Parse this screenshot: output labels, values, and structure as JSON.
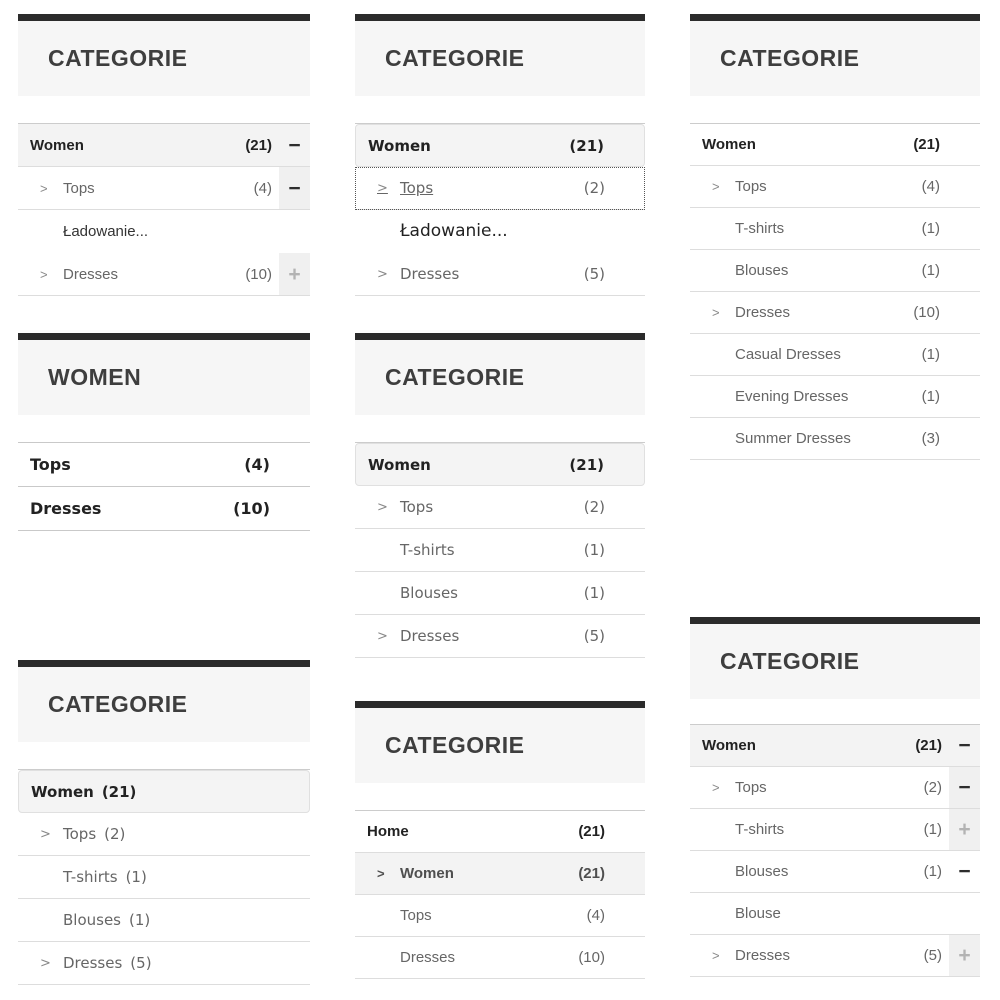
{
  "icons": {
    "chevron": ">",
    "collapse": "−",
    "expand": "+"
  },
  "columns": [
    {
      "widgets": [
        {
          "title": "CATEGORIE",
          "items": [
            {
              "label": "Women",
              "count": "(21)"
            },
            {
              "label": "Tops",
              "count": "(4)"
            },
            {
              "label": "Ładowanie..."
            },
            {
              "label": "Dresses",
              "count": "(10)"
            }
          ]
        },
        {
          "title": "WOMEN",
          "items": [
            {
              "label": "Tops",
              "count": "(4)"
            },
            {
              "label": "Dresses",
              "count": "(10)"
            }
          ]
        },
        {
          "title": "CATEGORIE",
          "items": [
            {
              "label": "Women",
              "count": "(21)"
            },
            {
              "label": "Tops",
              "count": "(2)"
            },
            {
              "label": "T-shirts",
              "count": "(1)"
            },
            {
              "label": "Blouses",
              "count": "(1)"
            },
            {
              "label": "Dresses",
              "count": "(5)"
            }
          ]
        }
      ]
    },
    {
      "widgets": [
        {
          "title": "CATEGORIE",
          "items": [
            {
              "label": "Women",
              "count": "(21)"
            },
            {
              "label": "Tops",
              "count": "(2)"
            },
            {
              "label": "Ładowanie..."
            },
            {
              "label": "Dresses",
              "count": "(5)"
            }
          ]
        },
        {
          "title": "CATEGORIE",
          "items": [
            {
              "label": "Women",
              "count": "(21)"
            },
            {
              "label": "Tops",
              "count": "(2)"
            },
            {
              "label": "T-shirts",
              "count": "(1)"
            },
            {
              "label": "Blouses",
              "count": "(1)"
            },
            {
              "label": "Dresses",
              "count": "(5)"
            }
          ]
        },
        {
          "title": "CATEGORIE",
          "items": [
            {
              "label": "Home",
              "count": "(21)"
            },
            {
              "label": "Women",
              "count": "(21)"
            },
            {
              "label": "Tops",
              "count": "(4)"
            },
            {
              "label": "Dresses",
              "count": "(10)"
            }
          ]
        }
      ]
    },
    {
      "widgets": [
        {
          "title": "CATEGORIE",
          "items": [
            {
              "label": "Women",
              "count": "(21)"
            },
            {
              "label": "Tops",
              "count": "(4)"
            },
            {
              "label": "T-shirts",
              "count": "(1)"
            },
            {
              "label": "Blouses",
              "count": "(1)"
            },
            {
              "label": "Dresses",
              "count": "(10)"
            },
            {
              "label": "Casual Dresses",
              "count": "(1)"
            },
            {
              "label": "Evening Dresses",
              "count": "(1)"
            },
            {
              "label": "Summer Dresses",
              "count": "(3)"
            }
          ]
        },
        {
          "title": "CATEGORIE",
          "items": [
            {
              "label": "Women",
              "count": "(21)"
            },
            {
              "label": "Tops",
              "count": "(2)"
            },
            {
              "label": "T-shirts",
              "count": "(1)"
            },
            {
              "label": "Blouses",
              "count": "(1)"
            },
            {
              "label": "Blouse"
            },
            {
              "label": "Dresses",
              "count": "(5)"
            }
          ]
        }
      ]
    }
  ]
}
